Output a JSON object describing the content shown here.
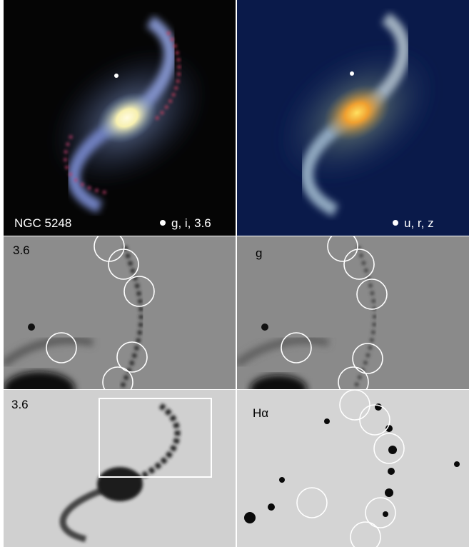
{
  "panels": [
    {
      "labels": [
        "NGC 5248",
        "g, i, 3.6"
      ]
    },
    {
      "labels": [
        "u, r, z"
      ]
    },
    {
      "labels": [
        "3.6"
      ]
    },
    {
      "labels": [
        "g"
      ]
    },
    {
      "labels": [
        "3.6"
      ]
    },
    {
      "labels": [
        "Hα"
      ]
    }
  ]
}
